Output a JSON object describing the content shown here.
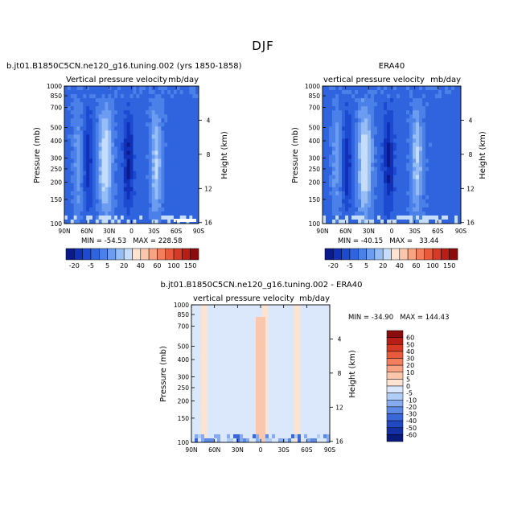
{
  "figure": {
    "title": "DJF"
  },
  "chart_data": [
    {
      "type": "heatmap",
      "title": "b.jt01.B1850C5CN.ne120_g16.tuning.002 (yrs 1850-1858)",
      "left_label": "Vertical pressure velocity",
      "units": "mb/day",
      "xlabel": "",
      "ylabel": "Pressure (mb)",
      "y2label": "Height (km)",
      "x_ticks": [
        "90N",
        "60N",
        "30N",
        "0",
        "30S",
        "60S",
        "90S"
      ],
      "x_values": [
        90,
        60,
        30,
        0,
        -30,
        -60,
        -90
      ],
      "y_ticks": [
        1000,
        850,
        700,
        500,
        400,
        300,
        250,
        200,
        150,
        100
      ],
      "y_scale": "log",
      "y_range": [
        1000,
        100
      ],
      "y2_ticks": [
        "4",
        "8",
        "12",
        "16"
      ],
      "stats_text": "MIN = -54.53   MAX = 228.58",
      "colorbar_labels": [
        "-20",
        "-5",
        "5",
        "20",
        "40",
        "60",
        "100",
        "150"
      ]
    },
    {
      "type": "heatmap",
      "title": "ERA40",
      "left_label": "vertical pressure velocity",
      "units": "mb/day",
      "xlabel": "",
      "ylabel": "Pressure (mb)",
      "y2label": "Height (km)",
      "x_ticks": [
        "90N",
        "60N",
        "30N",
        "0",
        "30S",
        "60S",
        "90S"
      ],
      "x_values": [
        90,
        60,
        30,
        0,
        -30,
        -60,
        -90
      ],
      "y_ticks": [
        1000,
        850,
        700,
        500,
        400,
        300,
        250,
        200,
        150,
        100
      ],
      "y_scale": "log",
      "y_range": [
        1000,
        100
      ],
      "y2_ticks": [
        "4",
        "8",
        "12",
        "16"
      ],
      "stats_text": "MIN = -40.15   MAX =   33.44",
      "colorbar_labels": [
        "-20",
        "-5",
        "5",
        "20",
        "40",
        "60",
        "100",
        "150"
      ]
    },
    {
      "type": "heatmap",
      "title": "b.jt01.B1850C5CN.ne120_g16.tuning.002 - ERA40",
      "left_label": "vertical pressure velocity",
      "units": "mb/day",
      "xlabel": "",
      "ylabel": "Pressure (mb)",
      "y2label": "Height (km)",
      "x_ticks": [
        "90N",
        "60N",
        "30N",
        "0",
        "30S",
        "60S",
        "90S"
      ],
      "x_values": [
        90,
        60,
        30,
        0,
        -30,
        -60,
        -90
      ],
      "y_ticks": [
        1000,
        850,
        700,
        500,
        400,
        300,
        250,
        200,
        150,
        100
      ],
      "y_scale": "log",
      "y_range": [
        1000,
        100
      ],
      "y2_ticks": [
        "4",
        "8",
        "12",
        "16"
      ],
      "stats_text": "MIN = -34.90   MAX = 144.43",
      "colorbar_labels": [
        "60",
        "50",
        "40",
        "30",
        "20",
        "10",
        "5",
        "0",
        "-5",
        "-10",
        "-20",
        "-30",
        "-40",
        "-50",
        "-60"
      ]
    }
  ],
  "colors": {
    "top_scale": [
      "#0a1a8c",
      "#1030b8",
      "#1c4ad0",
      "#2f64de",
      "#4a80e8",
      "#6c9cef",
      "#97bdf5",
      "#c6dcfb",
      "#fde3d2",
      "#fbc6ab",
      "#f8a384",
      "#f27e5d",
      "#e85a3c",
      "#d63a24",
      "#b81e16",
      "#8a0c0c"
    ],
    "diff_scale": [
      "#8a0c0c",
      "#b81e16",
      "#d63a24",
      "#e85a3c",
      "#f27e5d",
      "#f8a384",
      "#fbc6ab",
      "#fde3d2",
      "#dbe8fb",
      "#b0cdf7",
      "#86acef",
      "#5c8ae4",
      "#3a68d8",
      "#2348c4",
      "#1430a4",
      "#0a1a7c"
    ],
    "background_blue": "#2a5fdc",
    "diff_background": "#dbe8fb"
  }
}
